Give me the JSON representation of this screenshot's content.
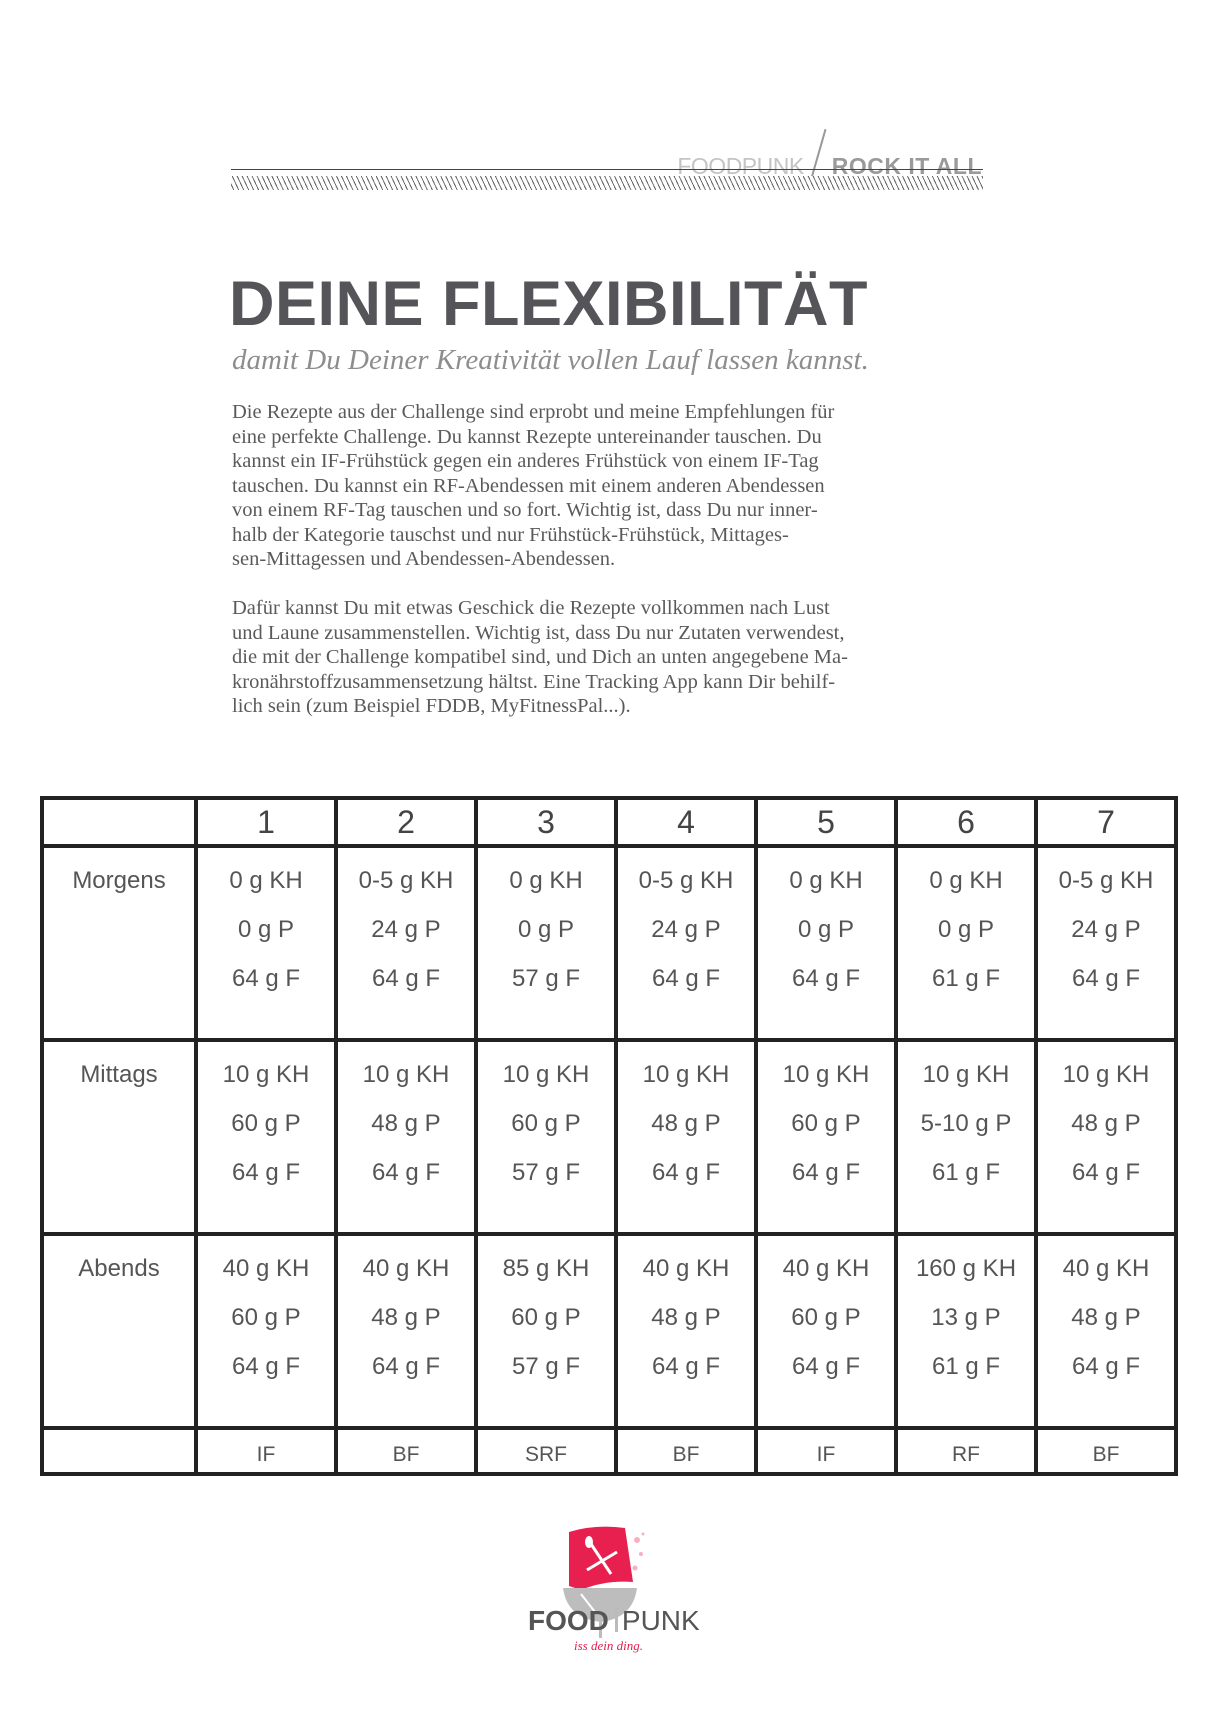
{
  "header": {
    "brand": "FOODPUNK",
    "tagline": "ROCK IT ALL"
  },
  "title": "DEINE FLEXIBILITÄT",
  "subtitle": "damit Du Deiner Kreativität vollen Lauf  lassen kannst.",
  "paragraph1": [
    "Die Rezepte aus der Challenge sind erprobt und meine Empfehlungen für",
    "eine perfekte Challenge. Du kannst Rezepte untereinander tauschen. Du",
    "kannst ein IF-Frühstück gegen ein anderes Frühstück von einem IF-Tag",
    "tauschen. Du kannst ein RF-Abendessen mit einem anderen Abendessen",
    "von einem RF-Tag tauschen und so fort. Wichtig ist, dass Du nur inner-",
    "halb der Kategorie tauschst und nur Frühstück-Frühstück, Mittages-",
    "sen-Mittagessen und Abendessen-Abendessen."
  ],
  "paragraph2": [
    "Dafür kannst Du mit etwas Geschick die Rezepte vollkommen nach Lust",
    "und Laune zusammenstellen. Wichtig ist, dass Du nur Zutaten verwendest,",
    "die mit der Challenge kompatibel sind, und Dich an unten angegebene Ma-",
    "kronährstoffzusammensetzung hältst. Eine Tracking App kann Dir behilf-",
    "lich sein (zum Beispiel FDDB, MyFitnessPal...)."
  ],
  "table": {
    "days": [
      "1",
      "2",
      "3",
      "4",
      "5",
      "6",
      "7"
    ],
    "rows": [
      {
        "label": "Morgens",
        "cells": [
          [
            "0 g KH",
            "0 g P",
            "64 g F"
          ],
          [
            "0-5 g KH",
            "24 g P",
            "64 g F"
          ],
          [
            "0 g KH",
            "0 g P",
            "57 g F"
          ],
          [
            "0-5 g KH",
            "24 g P",
            "64 g F"
          ],
          [
            "0 g KH",
            "0 g P",
            "64 g F"
          ],
          [
            "0 g KH",
            "0 g P",
            "61 g F"
          ],
          [
            "0-5 g KH",
            "24 g P",
            "64 g F"
          ]
        ]
      },
      {
        "label": "Mittags",
        "cells": [
          [
            "10 g KH",
            "60 g P",
            "64 g F"
          ],
          [
            "10 g KH",
            "48 g P",
            "64 g F"
          ],
          [
            "10 g KH",
            "60 g P",
            "57 g F"
          ],
          [
            "10 g KH",
            "48 g P",
            "64 g F"
          ],
          [
            "10 g KH",
            "60 g P",
            "64 g F"
          ],
          [
            "10 g KH",
            "5-10 g P",
            "61 g F"
          ],
          [
            "10 g KH",
            "48 g P",
            "64 g F"
          ]
        ]
      },
      {
        "label": "Abends",
        "cells": [
          [
            "40 g KH",
            "60 g P",
            "64 g F"
          ],
          [
            "40 g KH",
            "48 g P",
            "64 g F"
          ],
          [
            "85 g KH",
            "60 g P",
            "57 g F"
          ],
          [
            "40 g KH",
            "48 g P",
            "64 g F"
          ],
          [
            "40 g KH",
            "60 g P",
            "64 g F"
          ],
          [
            "160 g KH",
            "13 g P",
            "61 g F"
          ],
          [
            "40 g KH",
            "48 g P",
            "64 g F"
          ]
        ]
      }
    ],
    "types": [
      "IF",
      "BF",
      "SRF",
      "BF",
      "IF",
      "RF",
      "BF"
    ]
  },
  "logo": {
    "word1": "FOOD",
    "word2": "PUNK",
    "slogan": "iss dein ding.",
    "accent": "#e8204f",
    "grey": "#bdbdbd"
  }
}
